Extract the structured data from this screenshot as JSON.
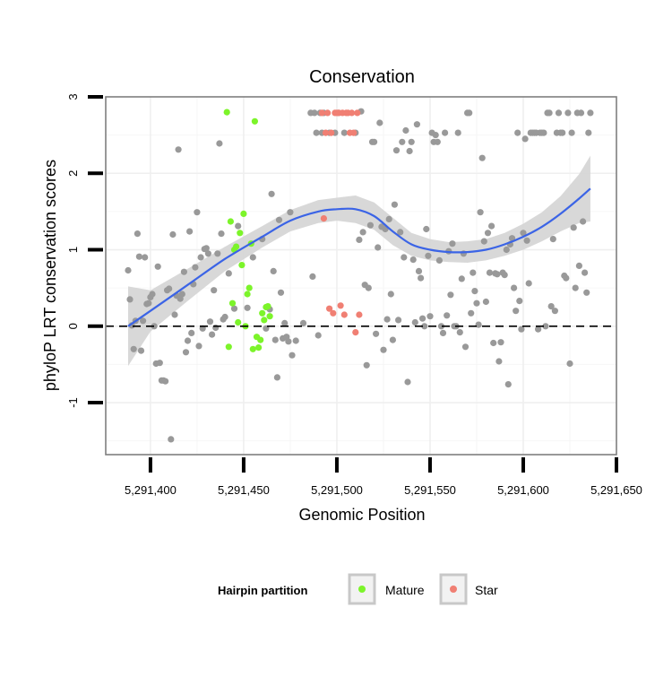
{
  "chart_data": {
    "type": "scatter",
    "title": "Conservation",
    "xlabel": "Genomic Position",
    "ylabel": "phyloP LRT conservation scores",
    "xlim": [
      5291376,
      5291650
    ],
    "ylim": [
      -1.68,
      3.0
    ],
    "x_ticks": [
      5291400,
      5291450,
      5291500,
      5291550,
      5291600,
      5291650
    ],
    "x_tick_labels": [
      "5,291,400",
      "5,291,450",
      "5,291,500",
      "5,291,550",
      "5,291,600",
      "5,291,650"
    ],
    "y_ticks": [
      -1,
      0,
      1,
      2,
      3
    ],
    "y_tick_labels": [
      "-1",
      "0",
      "1",
      "2",
      "3"
    ],
    "grid": true,
    "reference_line": {
      "y": 0,
      "style": "dashed"
    },
    "legend": {
      "title": "Hairpin partition",
      "placement": "bottom",
      "entries": [
        {
          "label": "Mature",
          "color": "#7cf42a"
        },
        {
          "label": "Star",
          "color": "#f07f73"
        }
      ]
    },
    "colors": {
      "other": "#999999",
      "mature": "#7cf42a",
      "star": "#f07f73",
      "smooth_line": "#3b64e6",
      "band": "#d4d4d4",
      "panel_border": "#7f7f7f",
      "grid": "#efefef"
    },
    "series": [
      {
        "key": "other",
        "points": [
          [
            5291388,
            0.73
          ],
          [
            5291389,
            0.35
          ],
          [
            5291390,
            0.01
          ],
          [
            5291391,
            -0.3
          ],
          [
            5291392,
            0.07
          ],
          [
            5291393,
            1.21
          ],
          [
            5291394,
            0.91
          ],
          [
            5291395,
            -0.32
          ],
          [
            5291396,
            0.07
          ],
          [
            5291397,
            0.9
          ],
          [
            5291398,
            0.29
          ],
          [
            5291399,
            0.3
          ],
          [
            5291400,
            0.38
          ],
          [
            5291401,
            0.42
          ],
          [
            5291402,
            0.0
          ],
          [
            5291403,
            -0.49
          ],
          [
            5291404,
            0.78
          ],
          [
            5291405,
            -0.48
          ],
          [
            5291406,
            -0.71
          ],
          [
            5291407,
            -0.71
          ],
          [
            5291408,
            -0.72
          ],
          [
            5291409,
            0.47
          ],
          [
            5291410,
            0.49
          ],
          [
            5291411,
            -1.48
          ],
          [
            5291412,
            1.2
          ],
          [
            5291413,
            0.15
          ],
          [
            5291414,
            0.4
          ],
          [
            5291415,
            2.31
          ],
          [
            5291416,
            0.36
          ],
          [
            5291417,
            0.42
          ],
          [
            5291418,
            0.71
          ],
          [
            5291419,
            -0.34
          ],
          [
            5291420,
            -0.19
          ],
          [
            5291421,
            1.24
          ],
          [
            5291422,
            -0.09
          ],
          [
            5291423,
            0.55
          ],
          [
            5291424,
            0.77
          ],
          [
            5291425,
            1.49
          ],
          [
            5291426,
            -0.26
          ],
          [
            5291427,
            0.9
          ],
          [
            5291428,
            -0.03
          ],
          [
            5291429,
            1.01
          ],
          [
            5291430,
            1.02
          ],
          [
            5291431,
            0.95
          ],
          [
            5291432,
            0.06
          ],
          [
            5291433,
            -0.11
          ],
          [
            5291434,
            0.47
          ],
          [
            5291435,
            -0.02
          ],
          [
            5291436,
            0.95
          ],
          [
            5291437,
            2.39
          ],
          [
            5291438,
            1.21
          ],
          [
            5291439,
            0.09
          ],
          [
            5291440,
            0.12
          ],
          [
            5291442,
            0.69
          ],
          [
            5291445,
            0.23
          ],
          [
            5291447,
            1.31
          ],
          [
            5291452,
            0.24
          ],
          [
            5291455,
            0.9
          ],
          [
            5291460,
            1.14
          ],
          [
            5291462,
            -0.03
          ],
          [
            5291464,
            0.22
          ],
          [
            5291465,
            1.73
          ],
          [
            5291466,
            0.72
          ],
          [
            5291467,
            -0.18
          ],
          [
            5291468,
            -0.67
          ],
          [
            5291469,
            1.39
          ],
          [
            5291470,
            0.44
          ],
          [
            5291471,
            -0.16
          ],
          [
            5291472,
            0.04
          ],
          [
            5291473,
            -0.14
          ],
          [
            5291474,
            -0.2
          ],
          [
            5291475,
            1.49
          ],
          [
            5291476,
            -0.38
          ],
          [
            5291478,
            -0.19
          ],
          [
            5291482,
            0.04
          ],
          [
            5291486,
            2.79
          ],
          [
            5291487,
            0.65
          ],
          [
            5291488,
            2.79
          ],
          [
            5291489,
            2.53
          ],
          [
            5291490,
            -0.12
          ],
          [
            5291491,
            2.79
          ],
          [
            5291492,
            2.53
          ],
          [
            5291493,
            2.79
          ],
          [
            5291496,
            2.53
          ],
          [
            5291499,
            2.53
          ],
          [
            5291501,
            2.79
          ],
          [
            5291504,
            2.53
          ],
          [
            5291510,
            2.53
          ],
          [
            5291512,
            1.13
          ],
          [
            5291513,
            2.81
          ],
          [
            5291514,
            1.23
          ],
          [
            5291515,
            0.54
          ],
          [
            5291516,
            -0.51
          ],
          [
            5291517,
            0.5
          ],
          [
            5291518,
            1.32
          ],
          [
            5291519,
            2.41
          ],
          [
            5291520,
            2.41
          ],
          [
            5291521,
            -0.1
          ],
          [
            5291522,
            1.03
          ],
          [
            5291523,
            2.66
          ],
          [
            5291524,
            1.3
          ],
          [
            5291525,
            -0.31
          ],
          [
            5291526,
            1.27
          ],
          [
            5291527,
            0.09
          ],
          [
            5291528,
            1.4
          ],
          [
            5291529,
            0.42
          ],
          [
            5291530,
            -0.18
          ],
          [
            5291531,
            1.59
          ],
          [
            5291532,
            2.3
          ],
          [
            5291533,
            0.08
          ],
          [
            5291534,
            1.23
          ],
          [
            5291535,
            2.41
          ],
          [
            5291536,
            0.9
          ],
          [
            5291537,
            2.56
          ],
          [
            5291538,
            -0.73
          ],
          [
            5291539,
            2.29
          ],
          [
            5291540,
            2.41
          ],
          [
            5291541,
            0.87
          ],
          [
            5291542,
            0.05
          ],
          [
            5291543,
            2.64
          ],
          [
            5291544,
            0.72
          ],
          [
            5291545,
            0.63
          ],
          [
            5291546,
            0.1
          ],
          [
            5291547,
            0.0
          ],
          [
            5291548,
            1.27
          ],
          [
            5291549,
            0.92
          ],
          [
            5291550,
            0.13
          ],
          [
            5291551,
            2.53
          ],
          [
            5291552,
            2.41
          ],
          [
            5291553,
            2.5
          ],
          [
            5291554,
            2.41
          ],
          [
            5291555,
            0.86
          ],
          [
            5291556,
            0.0
          ],
          [
            5291557,
            -0.09
          ],
          [
            5291558,
            2.53
          ],
          [
            5291559,
            0.14
          ],
          [
            5291560,
            0.98
          ],
          [
            5291561,
            0.41
          ],
          [
            5291562,
            1.08
          ],
          [
            5291563,
            0.0
          ],
          [
            5291564,
            0.0
          ],
          [
            5291565,
            2.53
          ],
          [
            5291566,
            -0.08
          ],
          [
            5291567,
            0.62
          ],
          [
            5291568,
            0.95
          ],
          [
            5291569,
            -0.27
          ],
          [
            5291570,
            2.79
          ],
          [
            5291571,
            2.79
          ],
          [
            5291572,
            0.17
          ],
          [
            5291573,
            0.7
          ],
          [
            5291574,
            0.46
          ],
          [
            5291575,
            0.3
          ],
          [
            5291576,
            0.02
          ],
          [
            5291577,
            1.49
          ],
          [
            5291578,
            2.2
          ],
          [
            5291579,
            1.11
          ],
          [
            5291580,
            0.32
          ],
          [
            5291581,
            1.22
          ],
          [
            5291582,
            0.7
          ],
          [
            5291583,
            1.31
          ],
          [
            5291584,
            -0.22
          ],
          [
            5291585,
            0.69
          ],
          [
            5291586,
            0.68
          ],
          [
            5291587,
            -0.46
          ],
          [
            5291588,
            -0.21
          ],
          [
            5291589,
            0.7
          ],
          [
            5291590,
            0.67
          ],
          [
            5291591,
            1.0
          ],
          [
            5291592,
            -0.76
          ],
          [
            5291593,
            1.07
          ],
          [
            5291594,
            1.15
          ],
          [
            5291595,
            0.5
          ],
          [
            5291596,
            0.2
          ],
          [
            5291597,
            2.53
          ],
          [
            5291598,
            0.33
          ],
          [
            5291599,
            -0.04
          ],
          [
            5291600,
            1.22
          ],
          [
            5291601,
            2.45
          ],
          [
            5291602,
            1.12
          ],
          [
            5291603,
            0.56
          ],
          [
            5291604,
            2.53
          ],
          [
            5291605,
            2.53
          ],
          [
            5291606,
            2.53
          ],
          [
            5291607,
            2.53
          ],
          [
            5291608,
            -0.04
          ],
          [
            5291609,
            2.53
          ],
          [
            5291610,
            2.53
          ],
          [
            5291611,
            2.53
          ],
          [
            5291612,
            0.0
          ],
          [
            5291613,
            2.79
          ],
          [
            5291614,
            2.79
          ],
          [
            5291615,
            0.26
          ],
          [
            5291616,
            1.14
          ],
          [
            5291617,
            0.2
          ],
          [
            5291618,
            2.53
          ],
          [
            5291619,
            2.79
          ],
          [
            5291620,
            2.53
          ],
          [
            5291621,
            2.53
          ],
          [
            5291622,
            0.66
          ],
          [
            5291623,
            0.63
          ],
          [
            5291624,
            2.79
          ],
          [
            5291625,
            -0.49
          ],
          [
            5291626,
            2.53
          ],
          [
            5291627,
            1.29
          ],
          [
            5291628,
            0.5
          ],
          [
            5291629,
            2.79
          ],
          [
            5291630,
            0.79
          ],
          [
            5291631,
            2.79
          ],
          [
            5291632,
            1.37
          ],
          [
            5291633,
            0.7
          ],
          [
            5291634,
            0.44
          ],
          [
            5291635,
            2.53
          ],
          [
            5291636,
            2.79
          ]
        ]
      },
      {
        "key": "mature",
        "name": "Mature",
        "points": [
          [
            5291441,
            2.8
          ],
          [
            5291442,
            -0.27
          ],
          [
            5291443,
            1.37
          ],
          [
            5291444,
            0.3
          ],
          [
            5291445,
            1.0
          ],
          [
            5291446,
            1.04
          ],
          [
            5291447,
            0.05
          ],
          [
            5291448,
            1.22
          ],
          [
            5291449,
            0.8
          ],
          [
            5291450,
            1.47
          ],
          [
            5291451,
            0.0
          ],
          [
            5291452,
            0.42
          ],
          [
            5291453,
            0.5
          ],
          [
            5291454,
            1.08
          ],
          [
            5291455,
            -0.3
          ],
          [
            5291456,
            2.68
          ],
          [
            5291457,
            -0.14
          ],
          [
            5291458,
            -0.28
          ],
          [
            5291459,
            -0.18
          ],
          [
            5291460,
            0.17
          ],
          [
            5291461,
            0.08
          ],
          [
            5291462,
            0.25
          ],
          [
            5291463,
            0.26
          ],
          [
            5291464,
            0.13
          ]
        ]
      },
      {
        "key": "star",
        "name": "Star",
        "points": [
          [
            5291492,
            2.79
          ],
          [
            5291493,
            1.41
          ],
          [
            5291494,
            2.53
          ],
          [
            5291495,
            2.79
          ],
          [
            5291496,
            0.23
          ],
          [
            5291497,
            2.53
          ],
          [
            5291498,
            0.17
          ],
          [
            5291499,
            2.79
          ],
          [
            5291500,
            2.79
          ],
          [
            5291501,
            2.79
          ],
          [
            5291502,
            0.27
          ],
          [
            5291503,
            2.79
          ],
          [
            5291504,
            0.15
          ],
          [
            5291505,
            2.79
          ],
          [
            5291506,
            2.79
          ],
          [
            5291507,
            2.53
          ],
          [
            5291508,
            2.79
          ],
          [
            5291509,
            2.53
          ],
          [
            5291510,
            -0.08
          ],
          [
            5291511,
            2.79
          ],
          [
            5291512,
            0.15
          ]
        ]
      }
    ],
    "smooth_fit": {
      "method": "loess",
      "x": [
        5291388,
        5291400,
        5291420,
        5291440,
        5291460,
        5291475,
        5291490,
        5291500,
        5291510,
        5291520,
        5291530,
        5291540,
        5291550,
        5291560,
        5291570,
        5291580,
        5291590,
        5291600,
        5291610,
        5291620,
        5291630,
        5291636
      ],
      "y": [
        0.0,
        0.2,
        0.54,
        0.88,
        1.17,
        1.38,
        1.5,
        1.53,
        1.53,
        1.44,
        1.24,
        1.07,
        1.0,
        0.97,
        0.97,
        1.0,
        1.07,
        1.17,
        1.3,
        1.47,
        1.67,
        1.8
      ],
      "lower": [
        -0.52,
        -0.07,
        0.33,
        0.72,
        1.03,
        1.24,
        1.35,
        1.38,
        1.35,
        1.26,
        1.06,
        0.92,
        0.86,
        0.84,
        0.83,
        0.86,
        0.92,
        1.0,
        1.11,
        1.24,
        1.35,
        1.37
      ],
      "upper": [
        0.52,
        0.47,
        0.75,
        1.04,
        1.31,
        1.52,
        1.65,
        1.68,
        1.71,
        1.62,
        1.42,
        1.22,
        1.14,
        1.1,
        1.11,
        1.14,
        1.22,
        1.34,
        1.49,
        1.7,
        1.99,
        2.23
      ]
    }
  }
}
